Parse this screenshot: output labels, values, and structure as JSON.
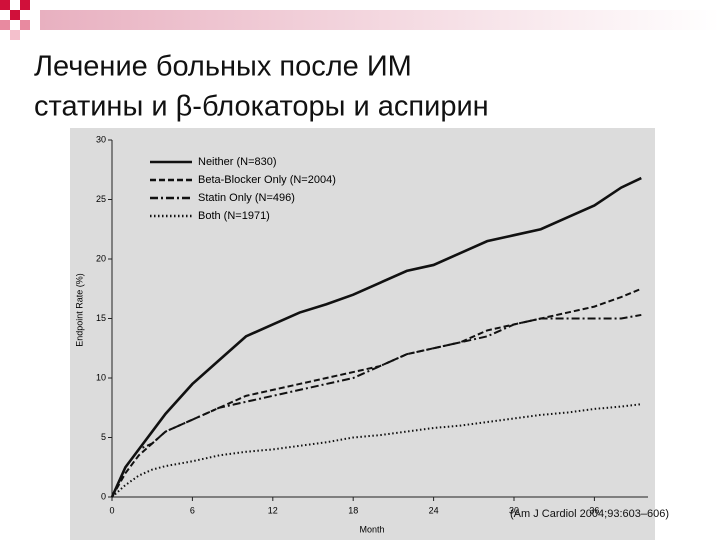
{
  "chart_data": {
    "type": "line",
    "title": [
      "Лечение больных после ИМ",
      "статины и β-блокаторы и аспирин"
    ],
    "x_label": "Month",
    "y_label": "Endpoint Rate (%)",
    "source": "(Am J Cardiol 2004;93:603–606)",
    "x": [
      0,
      1,
      2,
      3,
      4,
      6,
      8,
      10,
      12,
      14,
      16,
      18,
      20,
      22,
      24,
      26,
      28,
      30,
      32,
      34,
      36,
      38,
      39.5
    ],
    "series": [
      {
        "name": "Neither (N=830)",
        "color": "#111111",
        "dash": "solid",
        "values": [
          0,
          2.5,
          4,
          5.5,
          7,
          9.5,
          11.5,
          13.5,
          14.5,
          15.5,
          16.2,
          17,
          18,
          19,
          19.5,
          20.5,
          21.5,
          22,
          22.5,
          23.5,
          24.5,
          26,
          26.8
        ]
      },
      {
        "name": "Beta-Blocker Only (N=2004)",
        "color": "#111111",
        "dash": "dashed",
        "values": [
          0,
          2,
          3.5,
          4.5,
          5.5,
          6.5,
          7.5,
          8.5,
          9,
          9.5,
          10,
          10.5,
          11,
          12,
          12.5,
          13,
          14,
          14.5,
          15,
          15.5,
          16,
          16.8,
          17.5
        ]
      },
      {
        "name": "Statin Only (N=496)",
        "color": "#111111",
        "dash": "dashdot",
        "values": [
          0,
          2.5,
          4,
          4.5,
          5.5,
          6.5,
          7.5,
          8,
          8.5,
          9,
          9.5,
          10,
          11,
          12,
          12.5,
          13,
          13.5,
          14.5,
          15,
          15,
          15,
          15,
          15.3
        ]
      },
      {
        "name": "Both (N=1971)",
        "color": "#111111",
        "dash": "dotted",
        "values": [
          0,
          1,
          1.8,
          2.3,
          2.6,
          3,
          3.5,
          3.8,
          4,
          4.3,
          4.6,
          5,
          5.2,
          5.5,
          5.8,
          6,
          6.3,
          6.6,
          6.9,
          7.1,
          7.4,
          7.6,
          7.8
        ]
      }
    ],
    "xlim": [
      0,
      40
    ],
    "xticks": [
      0,
      6,
      12,
      18,
      24,
      30,
      36
    ],
    "ylim": [
      0,
      30
    ],
    "yticks": [
      0,
      5,
      10,
      15,
      20,
      25,
      30
    ]
  }
}
